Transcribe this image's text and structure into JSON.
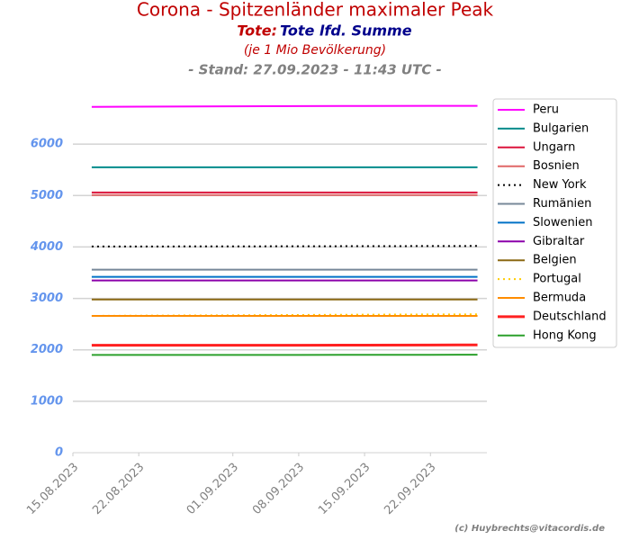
{
  "chart_data": {
    "type": "line",
    "title": "Corona - Spitzenländer maximaler Peak",
    "subtitle_label": "Tote:",
    "subtitle": "Tote lfd. Summe",
    "note": "(je 1 Mio Bevölkerung)",
    "stand": "- Stand: 27.09.2023 - 11:43 UTC -",
    "credit": "(c) Huybrechts@vitacordis.de",
    "x": [
      "17.08.2023",
      "22.08.2023",
      "01.09.2023",
      "08.09.2023",
      "15.09.2023",
      "22.09.2023",
      "27.09.2023"
    ],
    "xlim": [
      "15.08.2023",
      "28.09.2023"
    ],
    "xticks": [
      "15.08.2023",
      "22.08.2023",
      "01.09.2023",
      "08.09.2023",
      "15.09.2023",
      "22.09.2023"
    ],
    "ylim": [
      0,
      7000
    ],
    "yticks": [
      0,
      1000,
      2000,
      3000,
      4000,
      5000,
      6000
    ],
    "grid": true,
    "legend": "outside right",
    "series": [
      {
        "name": "Peru",
        "color": "#ff00ff",
        "values": [
          6725,
          6728,
          6735,
          6740,
          6742,
          6744,
          6745
        ]
      },
      {
        "name": "Bulgarien",
        "color": "#008b8b",
        "values": [
          5550,
          5550,
          5550,
          5550,
          5550,
          5550,
          5550
        ]
      },
      {
        "name": "Ungarn",
        "color": "#dc143c",
        "values": [
          5060,
          5060,
          5060,
          5060,
          5060,
          5060,
          5060
        ]
      },
      {
        "name": "Bosnien",
        "color": "#e06666",
        "values": [
          5010,
          5010,
          5010,
          5010,
          5010,
          5010,
          5010
        ]
      },
      {
        "name": "New York",
        "color": "#000000",
        "style": "dotted",
        "values": [
          4010,
          4010,
          4012,
          4014,
          4016,
          4018,
          4020
        ]
      },
      {
        "name": "Rumänien",
        "color": "#778899",
        "values": [
          3560,
          3560,
          3560,
          3560,
          3560,
          3560,
          3560
        ]
      },
      {
        "name": "Slowenien",
        "color": "#0072c6",
        "values": [
          3420,
          3420,
          3420,
          3420,
          3420,
          3420,
          3420
        ]
      },
      {
        "name": "Gibraltar",
        "color": "#8b00aa",
        "values": [
          3350,
          3350,
          3350,
          3350,
          3350,
          3350,
          3350
        ]
      },
      {
        "name": "Belgien",
        "color": "#8b6914",
        "values": [
          2980,
          2980,
          2980,
          2980,
          2980,
          2980,
          2980
        ]
      },
      {
        "name": "Portugal",
        "color": "#ffcc00",
        "style": "dotted",
        "values": [
          2660,
          2665,
          2672,
          2678,
          2684,
          2688,
          2690
        ]
      },
      {
        "name": "Bermuda",
        "color": "#ff8c00",
        "values": [
          2660,
          2660,
          2660,
          2660,
          2660,
          2660,
          2660
        ]
      },
      {
        "name": "Deutschland",
        "color": "#ff2020",
        "width": 3,
        "values": [
          2090,
          2090,
          2090,
          2090,
          2092,
          2094,
          2095
        ]
      },
      {
        "name": "Hong Kong",
        "color": "#2ca02c",
        "values": [
          1900,
          1900,
          1901,
          1902,
          1903,
          1904,
          1905
        ]
      }
    ]
  }
}
